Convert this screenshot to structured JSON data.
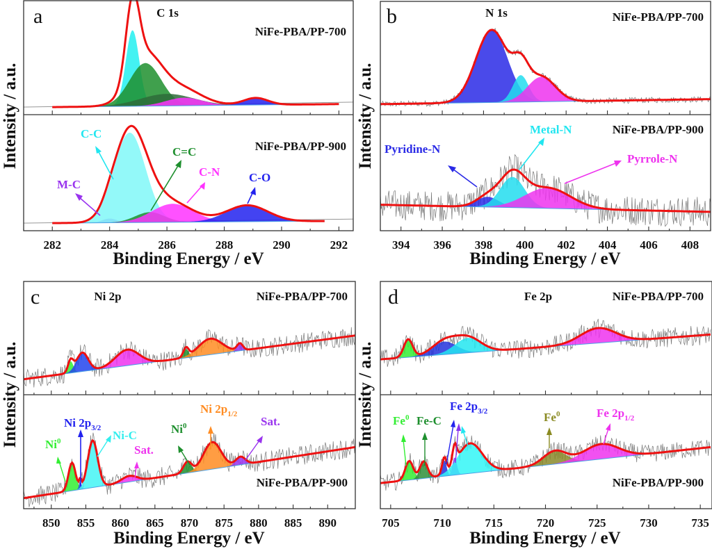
{
  "figure": {
    "ylabel": "Intensity / a.u.",
    "xlabel": "Binding Energy / eV"
  },
  "chart_data": [
    {
      "panel": "a",
      "type": "area",
      "title": "C 1s",
      "xlabel": "Binding Energy / eV",
      "ylabel": "Intensity / a.u.",
      "xlim": [
        281,
        292.5
      ],
      "xticks": [
        282,
        284,
        286,
        288,
        290,
        292
      ],
      "grid": false,
      "subplots": [
        {
          "sample": "NiFe-PBA/PP-700",
          "background": {
            "x": [
              282,
              292
            ],
            "y": [
              0.02,
              0.05
            ]
          },
          "components": [
            {
              "name": "C-C",
              "color": "#22f0f0",
              "center": 284.8,
              "height": 0.76,
              "fwhm": 0.55
            },
            {
              "name": "C=C",
              "color": "#1e8f2e",
              "center": 285.25,
              "height": 0.43,
              "fwhm": 1.3
            },
            {
              "name": "M-C",
              "color": "#2e6b3a",
              "center": 286.0,
              "height": 0.12,
              "fwhm": 2.2
            },
            {
              "name": "C-N",
              "color": "#ff33ff",
              "center": 286.6,
              "height": 0.08,
              "fwhm": 1.5
            },
            {
              "name": "C-O",
              "color": "#2222ee",
              "center": 289.1,
              "height": 0.07,
              "fwhm": 1.0
            }
          ],
          "envelope_color": "#ee1111"
        },
        {
          "sample": "NiFe-PBA/PP-900",
          "background": {
            "x": [
              282,
              291.5
            ],
            "y": [
              0.02,
              0.04
            ]
          },
          "components": [
            {
              "name": "M-C",
              "color": "#9955ee",
              "center": 284.0,
              "height": 0.04,
              "fwhm": 0.6
            },
            {
              "name": "C-C",
              "color": "#80f8f8",
              "center": 284.7,
              "height": 0.88,
              "fwhm": 1.3
            },
            {
              "name": "C=C",
              "color": "#1e8f2e",
              "center": 285.4,
              "height": 0.1,
              "fwhm": 1.2
            },
            {
              "name": "C-N",
              "color": "#ff33ff",
              "center": 286.2,
              "height": 0.18,
              "fwhm": 1.7
            },
            {
              "name": "C-O",
              "color": "#2222ee",
              "center": 288.8,
              "height": 0.16,
              "fwhm": 1.7
            }
          ],
          "envelope_color": "#ee1111"
        }
      ],
      "annotations": [
        {
          "text": "C-C",
          "color": "#22e6f0"
        },
        {
          "text": "C=C",
          "color": "#1e8f2e"
        },
        {
          "text": "C-N",
          "color": "#ff33ff"
        },
        {
          "text": "C-O",
          "color": "#2222ee"
        },
        {
          "text": "M-C",
          "color": "#9933ee"
        }
      ]
    },
    {
      "panel": "b",
      "type": "area",
      "title": "N 1s",
      "xlabel": "Binding Energy / eV",
      "ylabel": "Intensity / a.u.",
      "xlim": [
        393,
        409
      ],
      "xticks": [
        394,
        396,
        398,
        400,
        402,
        404,
        406,
        408
      ],
      "grid": false,
      "subplots": [
        {
          "sample": "NiFe-PBA/PP-700",
          "noise": 0.03,
          "background": {
            "x": [
              393,
              409
            ],
            "y": [
              0.05,
              0.1
            ]
          },
          "components": [
            {
              "name": "Pyridine-N",
              "color": "#2a2ae6",
              "center": 398.4,
              "height": 0.73,
              "fwhm": 1.8
            },
            {
              "name": "Metal-N",
              "color": "#22ddee",
              "center": 399.8,
              "height": 0.27,
              "fwhm": 0.9
            },
            {
              "name": "Pyrrole-N",
              "color": "#ee33ee",
              "center": 400.8,
              "height": 0.25,
              "fwhm": 1.6
            }
          ],
          "envelope_color": "#ee1111"
        },
        {
          "sample": "NiFe-PBA/PP-900",
          "noise": 0.15,
          "background": {
            "x": [
              393,
              409
            ],
            "y": [
              0.2,
              0.13
            ]
          },
          "components": [
            {
              "name": "Pyridine-N",
              "color": "#2a2ae6",
              "center": 398.2,
              "height": 0.1,
              "fwhm": 1.3
            },
            {
              "name": "Metal-N",
              "color": "#22ddee",
              "center": 399.4,
              "height": 0.3,
              "fwhm": 1.4
            },
            {
              "name": "Pyrrole-N",
              "color": "#ee33ee",
              "center": 401.1,
              "height": 0.2,
              "fwhm": 2.6
            }
          ],
          "envelope_color": "#ee1111"
        }
      ],
      "annotations": [
        {
          "text": "Pyridine-N",
          "color": "#2a2ae6"
        },
        {
          "text": "Metal-N",
          "color": "#22e6f0"
        },
        {
          "text": "Pyrrole-N",
          "color": "#ee33ee"
        }
      ]
    },
    {
      "panel": "c",
      "type": "area",
      "title": "Ni 2p",
      "xlabel": "Binding Energy / eV",
      "ylabel": "Intensity / a.u.",
      "xlim": [
        846,
        894
      ],
      "xticks": [
        850,
        855,
        860,
        865,
        870,
        875,
        880,
        885,
        890
      ],
      "grid": false,
      "subplots": [
        {
          "sample": "NiFe-PBA/PP-700",
          "noise": 0.1,
          "background": {
            "x": [
              846,
              894
            ],
            "y": [
              0.1,
              0.54
            ]
          },
          "components": [
            {
              "name": "Ni0",
              "color": "#33ee33",
              "center": 852.8,
              "height": 0.12,
              "fwhm": 0.9
            },
            {
              "name": "Ni 2p3/2",
              "color": "#2244ee",
              "center": 854.5,
              "height": 0.19,
              "fwhm": 2.0
            },
            {
              "name": "Sat.",
              "color": "#ee33ee",
              "center": 861.0,
              "height": 0.16,
              "fwhm": 4.0
            },
            {
              "name": "Ni0",
              "color": "#1e8f2e",
              "center": 869.5,
              "height": 0.09,
              "fwhm": 0.9
            },
            {
              "name": "Ni 2p1/2",
              "color": "#ff8c22",
              "center": 873.0,
              "height": 0.16,
              "fwhm": 4.0
            },
            {
              "name": "Sat.",
              "color": "#9933ee",
              "center": 877.3,
              "height": 0.07,
              "fwhm": 1.0
            }
          ],
          "envelope_color": "#ee1111"
        },
        {
          "sample": "NiFe-PBA/PP-900",
          "noise": 0.1,
          "background": {
            "x": [
              846,
              894
            ],
            "y": [
              0.05,
              0.56
            ]
          },
          "components": [
            {
              "name": "Ni0",
              "color": "#33ee33",
              "center": 853.0,
              "height": 0.28,
              "fwhm": 1.2
            },
            {
              "name": "Ni 2p3/2",
              "color": "#2244ee",
              "center": 854.2,
              "height": 0.08,
              "fwhm": 0.4
            },
            {
              "name": "Ni-C",
              "color": "#44f4f4",
              "center": 856.0,
              "height": 0.47,
              "fwhm": 1.7
            },
            {
              "name": "Sat.",
              "color": "#ee33ee",
              "center": 861.3,
              "height": 0.06,
              "fwhm": 2.6
            },
            {
              "name": "Ni0",
              "color": "#1e8f2e",
              "center": 869.7,
              "height": 0.11,
              "fwhm": 1.4
            },
            {
              "name": "Ni 2p1/2",
              "color": "#ff8c22",
              "center": 873.3,
              "height": 0.27,
              "fwhm": 3.0
            },
            {
              "name": "Sat.",
              "color": "#9933ee",
              "center": 877.4,
              "height": 0.08,
              "fwhm": 1.6
            }
          ],
          "envelope_color": "#ee1111"
        }
      ],
      "annotations": [
        {
          "text": "Ni",
          "sup": "0",
          "color": "#33ee33"
        },
        {
          "text": "Ni 2p",
          "sub": "3/2",
          "color": "#2222ee"
        },
        {
          "text": "Ni-C",
          "color": "#33eeee"
        },
        {
          "text": "Sat.",
          "color": "#ee33ee"
        },
        {
          "text": "Ni",
          "sup": "0",
          "color": "#1e8f2e"
        },
        {
          "text": "Ni 2p",
          "sub": "1/2",
          "color": "#ff8c22"
        },
        {
          "text": "Sat.",
          "color": "#9933ee"
        }
      ]
    },
    {
      "panel": "d",
      "type": "area",
      "title": "Fe 2p",
      "xlabel": "Binding Energy / eV",
      "ylabel": "Intensity / a.u.",
      "xlim": [
        704,
        736
      ],
      "xticks": [
        705,
        710,
        715,
        720,
        725,
        730,
        735
      ],
      "grid": false,
      "subplots": [
        {
          "sample": "NiFe-PBA/PP-700",
          "noise": 0.1,
          "background": {
            "x": [
              704,
              736
            ],
            "y": [
              0.3,
              0.55
            ]
          },
          "components": [
            {
              "name": "Fe0",
              "color": "#33ee33",
              "center": 706.7,
              "height": 0.18,
              "fwhm": 1.0
            },
            {
              "name": "Fe 2p3/2",
              "color": "#2233dd",
              "center": 710.2,
              "height": 0.13,
              "fwhm": 2.8
            },
            {
              "name": "Fe 2p3/2 (cyan)",
              "color": "#22e6f0",
              "center": 712.5,
              "height": 0.15,
              "fwhm": 3.0
            },
            {
              "name": "Fe 2p1/2",
              "color": "#ee33ee",
              "center": 725.1,
              "height": 0.15,
              "fwhm": 4.0
            }
          ],
          "envelope_color": "#ee1111"
        },
        {
          "sample": "NiFe-PBA/PP-900",
          "noise": 0.09,
          "background": {
            "x": [
              704,
              736
            ],
            "y": [
              0.2,
              0.56
            ]
          },
          "components": [
            {
              "name": "Fe0",
              "color": "#33ee33",
              "center": 706.8,
              "height": 0.19,
              "fwhm": 0.9
            },
            {
              "name": "Fe-C",
              "color": "#2e8f3a",
              "center": 708.2,
              "height": 0.17,
              "fwhm": 0.9
            },
            {
              "name": "Fe 2p3/2",
              "color": "#2233dd",
              "center": 710.2,
              "height": 0.16,
              "fwhm": 0.5
            },
            {
              "name": "Fe 2p3/2 (violet)",
              "color": "#8833ee",
              "center": 711.2,
              "height": 0.18,
              "fwhm": 0.5
            },
            {
              "name": "Fe 2p3/2 (cyan)",
              "color": "#33f6f6",
              "center": 712.7,
              "height": 0.3,
              "fwhm": 2.8
            },
            {
              "name": "Fe0",
              "color": "#8a8a2a",
              "center": 720.9,
              "height": 0.13,
              "fwhm": 2.6
            },
            {
              "name": "Fe 2p1/2",
              "color": "#ee33ee",
              "center": 725.4,
              "height": 0.15,
              "fwhm": 4.0
            }
          ],
          "envelope_color": "#ee1111"
        }
      ],
      "annotations": [
        {
          "text": "Fe",
          "sup": "0",
          "color": "#33ee33"
        },
        {
          "text": "Fe-C",
          "color": "#1e8f2e"
        },
        {
          "text": "Fe 2p",
          "sub": "3/2",
          "color": "#2222ee"
        },
        {
          "text": "Fe",
          "sup": "0",
          "color": "#8a8a22"
        },
        {
          "text": "Fe 2p",
          "sub": "1/2",
          "color": "#ee33ee"
        }
      ]
    }
  ]
}
